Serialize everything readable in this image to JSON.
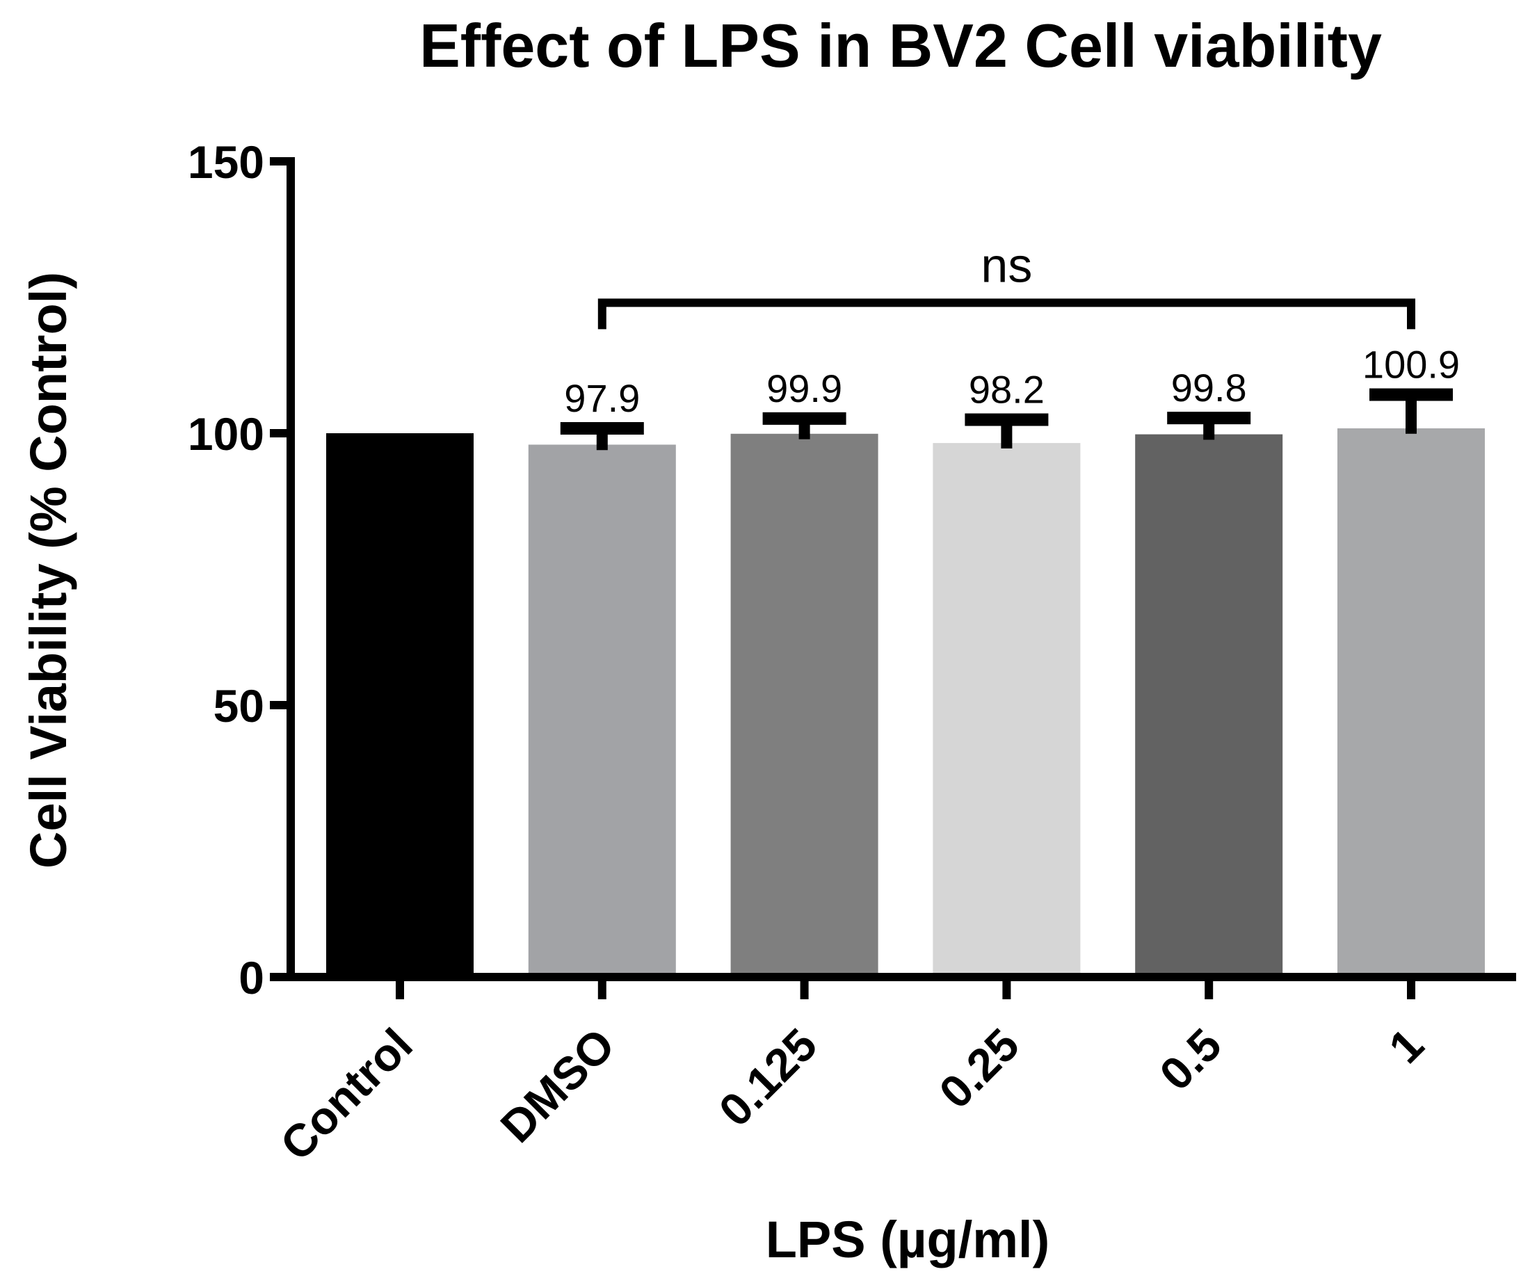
{
  "chart_data": {
    "type": "bar",
    "title": "Effect of LPS in BV2 Cell viability",
    "xlabel": "LPS (µg/ml)",
    "ylabel": "Cell Viability (% Control)",
    "categories": [
      "Control",
      "DMSO",
      "0.125",
      "0.25",
      "0.5",
      "1"
    ],
    "values": [
      100,
      97.9,
      99.9,
      98.2,
      99.8,
      100.9
    ],
    "error_upper": [
      0,
      3.0,
      2.8,
      4.3,
      3.0,
      6.2
    ],
    "error_lower": [
      0,
      1.0,
      1.0,
      1.0,
      1.0,
      1.0
    ],
    "data_labels": [
      "",
      "97.9",
      "99.9",
      "98.2",
      "99.8",
      "100.9"
    ],
    "bar_colors": [
      "#000000",
      "#a2a3a6",
      "#7f7f7f",
      "#d6d6d6",
      "#626262",
      "#a7a8aa"
    ],
    "ylim": [
      0,
      150
    ],
    "yticks": [
      0,
      50,
      100,
      150
    ],
    "ytick_labels": [
      "0",
      "50",
      "100",
      "150"
    ],
    "grid": false,
    "annotations": [
      {
        "text": "ns",
        "from_category": "DMSO",
        "to_category": "1",
        "y": 124
      }
    ]
  }
}
